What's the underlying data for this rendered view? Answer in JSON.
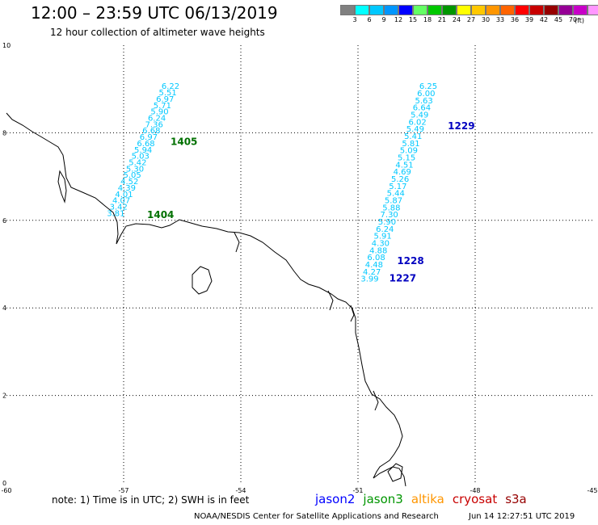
{
  "header": {
    "title": "12:00 – 23:59 UTC 06/13/2019",
    "subtitle": "12 hour collection of altimeter wave heights"
  },
  "legend": {
    "colors": [
      "#808080",
      "#00ffff",
      "#00c8ff",
      "#0096ff",
      "#0000ff",
      "#64ff64",
      "#00c800",
      "#009600",
      "#ffff00",
      "#ffc800",
      "#ff9600",
      "#ff6400",
      "#ff0000",
      "#c80000",
      "#960000",
      "#960096",
      "#c800c8",
      "#ff96ff",
      "#000000"
    ],
    "labels": [
      "3",
      "6",
      "9",
      "12",
      "15",
      "18",
      "21",
      "24",
      "27",
      "30",
      "33",
      "36",
      "39",
      "42",
      "45",
      "70"
    ],
    "unit": "(ft)"
  },
  "axes": {
    "x_ticks": [
      "-60",
      "-57",
      "-54",
      "-51",
      "-48",
      "-45"
    ],
    "y_ticks": [
      "0",
      "2",
      "4",
      "6",
      "8",
      "10"
    ],
    "x_range": [
      -60,
      -45
    ],
    "y_range": [
      0,
      10
    ]
  },
  "tracks": [
    {
      "satellite": "jason3",
      "color": "#00c8ff",
      "start": [
        -55.8,
        9.0
      ],
      "end": [
        -57.2,
        6.1
      ],
      "values": [
        "6.22",
        "5.51",
        "6.97",
        "5.71",
        "5.90",
        "6.24",
        "7.36",
        "6.68",
        "6.97",
        "6.68",
        "5.94",
        "5.03",
        "5.42",
        "5.30",
        "5.05",
        "4.52",
        "4.39",
        "4.01",
        "4.07",
        "3.42",
        "3.81"
      ],
      "time_labels": [
        {
          "text": "1405",
          "lon": -55.8,
          "lat": 7.72,
          "color": "#007000"
        },
        {
          "text": "1404",
          "lon": -56.4,
          "lat": 6.05,
          "color": "#007000"
        }
      ]
    },
    {
      "satellite": "jason2",
      "color": "#00c8ff",
      "start": [
        -49.2,
        9.0
      ],
      "end": [
        -50.7,
        4.6
      ],
      "values": [
        "6.25",
        "6.00",
        "5.63",
        "6.64",
        "5.49",
        "6.02",
        "5.49",
        "5.41",
        "5.81",
        "5.09",
        "5.15",
        "4.51",
        "4.69",
        "5.26",
        "5.17",
        "5.44",
        "5.87",
        "5.88",
        "7.30",
        "5.90",
        "6.24",
        "5.91",
        "4.30",
        "4.88",
        "6.08",
        "4.48",
        "4.27",
        "3.99"
      ],
      "time_labels": [
        {
          "text": "1229",
          "lon": -48.7,
          "lat": 8.08,
          "color": "#0000c0"
        },
        {
          "text": "1228",
          "lon": -50.0,
          "lat": 5.0,
          "color": "#0000c0"
        },
        {
          "text": "1227",
          "lon": -50.2,
          "lat": 4.6,
          "color": "#0000c0"
        }
      ]
    }
  ],
  "footer": {
    "note": "note:  1) Time is in UTC;  2) SWH is in feet",
    "satellites": [
      {
        "name": "jason2",
        "color": "#0000ff"
      },
      {
        "name": "jason3",
        "color": "#009600"
      },
      {
        "name": "altika",
        "color": "#ff9600"
      },
      {
        "name": "cryosat",
        "color": "#c80000"
      },
      {
        "name": "s3a",
        "color": "#960000"
      }
    ],
    "credit": "NOAA/NESDIS Center for Satellite Applications and Research",
    "timestamp": "Jun 14 12:27:51 UTC 2019"
  }
}
